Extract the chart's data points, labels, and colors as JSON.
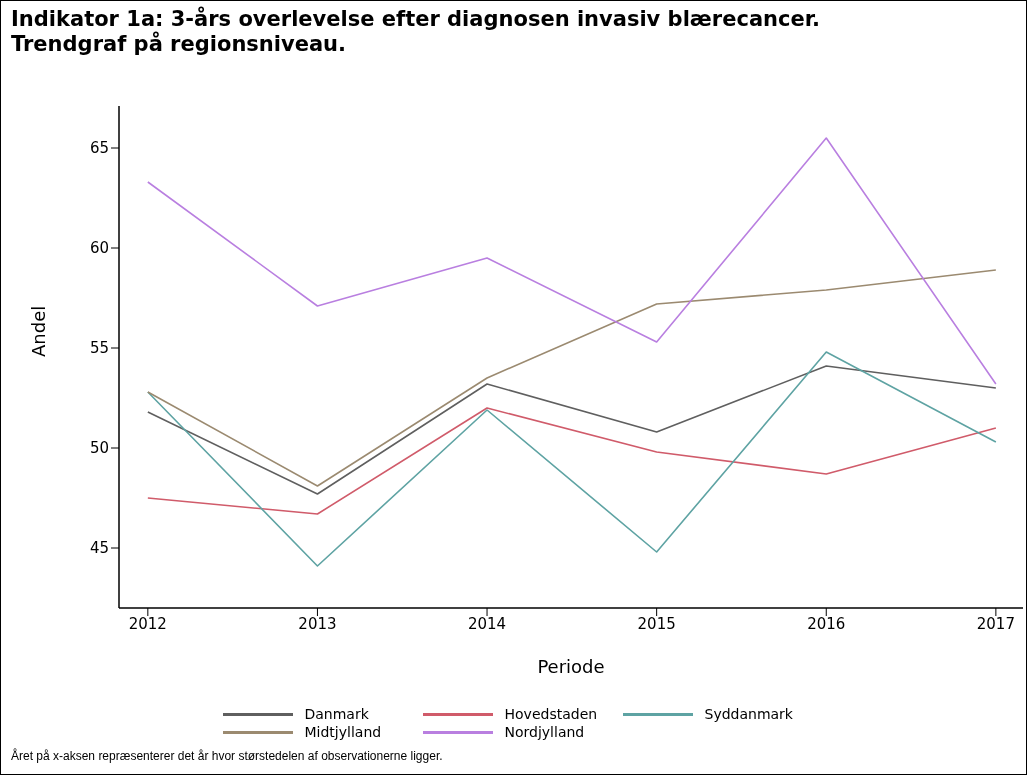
{
  "chart_data": {
    "type": "line",
    "title": "Indikator 1a: 3-års overlevelse efter diagnosen invasiv blærecancer.\nTrendgraf på regionsniveau.",
    "xlabel": "Periode",
    "ylabel": "Andel",
    "x": [
      2012,
      2013,
      2014,
      2015,
      2016,
      2017
    ],
    "series": [
      {
        "name": "Danmark",
        "color": "#5f5f5f",
        "values": [
          51.8,
          47.7,
          53.2,
          50.8,
          54.1,
          53.0
        ]
      },
      {
        "name": "Hovedstaden",
        "color": "#d05b6a",
        "values": [
          47.5,
          46.7,
          52.0,
          49.8,
          48.7,
          51.0
        ]
      },
      {
        "name": "Syddanmark",
        "color": "#5ea3a3",
        "values": [
          52.8,
          44.1,
          51.9,
          44.8,
          54.8,
          50.3
        ]
      },
      {
        "name": "Midtjylland",
        "color": "#9b8a70",
        "values": [
          52.8,
          48.1,
          53.5,
          57.2,
          57.9,
          58.9
        ]
      },
      {
        "name": "Nordjylland",
        "color": "#b97fe0",
        "values": [
          63.3,
          57.1,
          59.5,
          55.3,
          65.5,
          53.2
        ]
      }
    ],
    "xlim": [
      2011.83,
      2017.16
    ],
    "xticks": [
      2012,
      2013,
      2014,
      2015,
      2016,
      2017
    ],
    "ylim": [
      42,
      67.1
    ],
    "yticks": [
      45,
      50,
      55,
      60,
      65
    ],
    "grid": false,
    "legend": "bottom",
    "marker": "none",
    "line_style": "solid",
    "annotations": [
      "Året på x-aksen repræsenterer det år hvor størstedelen af observationerne ligger."
    ]
  }
}
